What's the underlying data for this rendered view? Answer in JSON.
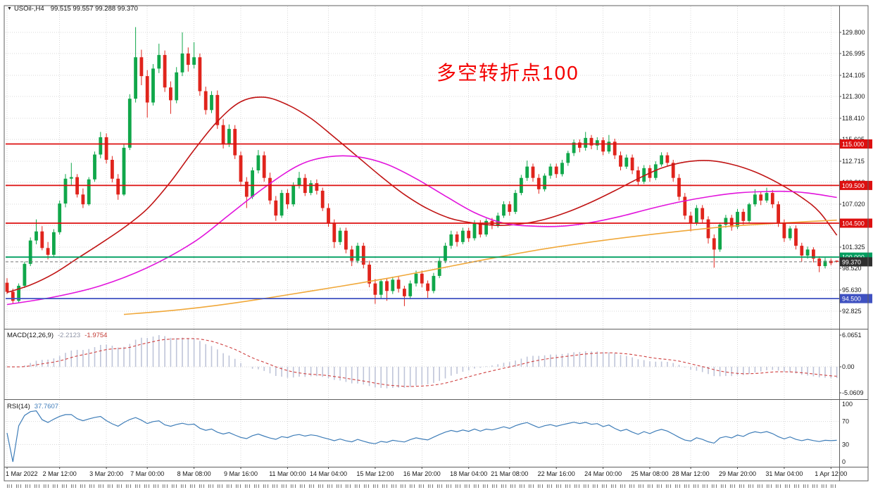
{
  "title": {
    "dropdown_glyph": "▼",
    "symbol_tf": "USOil-,H4",
    "ohlc": "99.515 99.557 99.288 99.370"
  },
  "annotation": {
    "text": "多空转折点100",
    "color": "#f40000"
  },
  "chart_data": {
    "type": "candlestick",
    "symbol": "USOil-",
    "timeframe": "H4",
    "title_ohlc": "99.515 99.557 99.288 99.370",
    "style": {
      "up": "#10a74a",
      "down": "#e0241c",
      "grid": "#d8d8d8",
      "macd_hist": "#bfc5d9",
      "macd_signal": "#cf4040",
      "rsi_line": "#3e7db8",
      "axis_text": "#161616"
    },
    "price_ticks": [
      "129.800",
      "126.995",
      "124.105",
      "121.300",
      "118.410",
      "115.605",
      "112.715",
      "109.910",
      "107.020",
      "104.215",
      "101.325",
      "98.520",
      "95.630",
      "92.825"
    ],
    "hlines": [
      {
        "price": 115.0,
        "label": "115.000",
        "color": "#dd0f0f"
      },
      {
        "price": 109.5,
        "label": " 109.500",
        "color": "#dd0f0f"
      },
      {
        "price": 104.5,
        "label": "104.500",
        "color": "#dd0f0f"
      },
      {
        "price": 100.0,
        "label": "100.000",
        "color": "#009f60"
      },
      {
        "price": 94.5,
        "label": "94.500",
        "color": "#3f51c1"
      }
    ],
    "current_price": {
      "value": 99.37,
      "label": "99.370",
      "color": "#2f2f2f"
    },
    "candles": [
      [
        96.6,
        97.2,
        95.1,
        95.4
      ],
      [
        95.4,
        95.8,
        93.9,
        94.2
      ],
      [
        94.2,
        96.5,
        93.9,
        96.2
      ],
      [
        96.2,
        99.4,
        95.9,
        99.1
      ],
      [
        99.1,
        102.6,
        98.8,
        102.2
      ],
      [
        102.2,
        105.0,
        101.7,
        103.4
      ],
      [
        103.4,
        104.1,
        100.9,
        101.2
      ],
      [
        101.2,
        102.0,
        99.7,
        100.3
      ],
      [
        100.3,
        103.7,
        100.0,
        103.3
      ],
      [
        103.3,
        107.5,
        103.0,
        107.1
      ],
      [
        107.1,
        111.0,
        106.6,
        110.4
      ],
      [
        110.4,
        112.5,
        109.5,
        110.6
      ],
      [
        110.6,
        111.0,
        107.9,
        108.3
      ],
      [
        108.3,
        109.1,
        106.5,
        107.0
      ],
      [
        107.0,
        110.6,
        106.8,
        110.3
      ],
      [
        110.3,
        114.0,
        110.0,
        113.6
      ],
      [
        113.6,
        116.6,
        113.1,
        115.9
      ],
      [
        115.9,
        116.4,
        112.4,
        112.9
      ],
      [
        112.9,
        113.4,
        109.9,
        110.4
      ],
      [
        110.4,
        111.0,
        107.6,
        108.3
      ],
      [
        108.3,
        115.0,
        108.1,
        114.5
      ],
      [
        114.5,
        121.6,
        114.2,
        121.0
      ],
      [
        121.0,
        130.5,
        120.5,
        126.5
      ],
      [
        126.5,
        127.5,
        122.8,
        124.0
      ],
      [
        124.0,
        124.8,
        118.5,
        120.5
      ],
      [
        120.5,
        125.6,
        120.1,
        125.0
      ],
      [
        125.0,
        128.3,
        124.4,
        126.8
      ],
      [
        126.8,
        127.4,
        121.9,
        122.5
      ],
      [
        122.5,
        123.3,
        119.0,
        120.8
      ],
      [
        120.8,
        125.2,
        120.4,
        124.5
      ],
      [
        124.5,
        129.8,
        124.0,
        127.0
      ],
      [
        127.0,
        127.8,
        124.6,
        125.5
      ],
      [
        125.5,
        128.5,
        125.0,
        126.5
      ],
      [
        126.5,
        127.0,
        121.4,
        122.0
      ],
      [
        122.0,
        122.6,
        118.9,
        119.5
      ],
      [
        119.5,
        122.0,
        119.1,
        121.5
      ],
      [
        121.5,
        122.1,
        117.0,
        117.5
      ],
      [
        117.5,
        118.3,
        114.4,
        115.0
      ],
      [
        115.0,
        117.6,
        114.6,
        117.0
      ],
      [
        117.0,
        117.5,
        113.0,
        113.5
      ],
      [
        113.5,
        114.0,
        109.4,
        110.0
      ],
      [
        110.0,
        110.6,
        106.5,
        108.0
      ],
      [
        108.0,
        111.9,
        107.7,
        111.5
      ],
      [
        111.5,
        114.2,
        111.1,
        113.5
      ],
      [
        113.5,
        114.0,
        110.0,
        110.5
      ],
      [
        110.5,
        111.2,
        107.0,
        107.5
      ],
      [
        107.5,
        108.1,
        104.8,
        105.5
      ],
      [
        105.5,
        108.9,
        105.2,
        108.5
      ],
      [
        108.5,
        109.0,
        106.4,
        107.0
      ],
      [
        107.0,
        109.9,
        106.7,
        109.5
      ],
      [
        109.5,
        111.3,
        109.1,
        110.5
      ],
      [
        110.5,
        111.0,
        108.1,
        108.5
      ],
      [
        108.5,
        110.2,
        108.2,
        109.8
      ],
      [
        109.8,
        110.3,
        108.3,
        108.8
      ],
      [
        108.8,
        109.2,
        106.1,
        106.5
      ],
      [
        106.5,
        107.1,
        104.0,
        104.5
      ],
      [
        104.5,
        105.0,
        101.2,
        102.0
      ],
      [
        102.0,
        103.9,
        101.6,
        103.5
      ],
      [
        103.5,
        103.9,
        100.5,
        101.0
      ],
      [
        101.0,
        101.5,
        98.8,
        99.5
      ],
      [
        99.5,
        101.9,
        99.2,
        101.5
      ],
      [
        101.5,
        101.9,
        98.5,
        99.0
      ],
      [
        99.0,
        99.5,
        96.0,
        96.5
      ],
      [
        96.5,
        97.1,
        93.8,
        95.0
      ],
      [
        95.0,
        97.1,
        94.5,
        96.8
      ],
      [
        96.8,
        97.2,
        94.2,
        95.5
      ],
      [
        95.5,
        97.4,
        95.1,
        97.0
      ],
      [
        97.0,
        97.4,
        95.3,
        95.8
      ],
      [
        95.8,
        96.2,
        93.5,
        94.8
      ],
      [
        94.8,
        96.9,
        94.4,
        96.5
      ],
      [
        96.5,
        98.2,
        96.1,
        97.8
      ],
      [
        97.8,
        98.2,
        96.0,
        96.5
      ],
      [
        96.5,
        96.9,
        94.6,
        95.5
      ],
      [
        95.5,
        97.9,
        95.2,
        97.5
      ],
      [
        97.5,
        99.9,
        97.2,
        99.5
      ],
      [
        99.5,
        101.9,
        99.2,
        101.5
      ],
      [
        101.5,
        103.5,
        101.1,
        103.0
      ],
      [
        103.0,
        103.4,
        101.4,
        102.0
      ],
      [
        102.0,
        103.9,
        101.7,
        103.5
      ],
      [
        103.5,
        103.9,
        102.0,
        102.5
      ],
      [
        102.5,
        104.9,
        102.2,
        104.5
      ],
      [
        104.5,
        104.9,
        102.6,
        103.0
      ],
      [
        103.0,
        105.1,
        102.7,
        104.8
      ],
      [
        104.8,
        105.2,
        103.7,
        104.2
      ],
      [
        104.2,
        105.9,
        103.9,
        105.5
      ],
      [
        105.5,
        107.4,
        105.2,
        107.0
      ],
      [
        107.0,
        107.4,
        105.5,
        106.0
      ],
      [
        106.0,
        108.9,
        105.7,
        108.5
      ],
      [
        108.5,
        110.9,
        108.2,
        110.5
      ],
      [
        110.5,
        112.8,
        110.1,
        112.0
      ],
      [
        112.0,
        112.4,
        110.0,
        110.5
      ],
      [
        110.5,
        111.0,
        108.4,
        109.0
      ],
      [
        109.0,
        111.1,
        108.7,
        110.8
      ],
      [
        110.8,
        112.4,
        110.4,
        112.0
      ],
      [
        112.0,
        112.4,
        110.5,
        111.0
      ],
      [
        111.0,
        112.9,
        110.7,
        112.5
      ],
      [
        112.5,
        114.1,
        112.1,
        113.8
      ],
      [
        113.8,
        115.6,
        113.4,
        115.2
      ],
      [
        115.2,
        115.6,
        113.9,
        114.5
      ],
      [
        114.5,
        116.6,
        114.1,
        115.8
      ],
      [
        115.8,
        116.2,
        114.3,
        114.8
      ],
      [
        114.8,
        115.9,
        114.2,
        115.5
      ],
      [
        115.5,
        115.9,
        113.5,
        114.0
      ],
      [
        114.0,
        116.2,
        113.7,
        115.3
      ],
      [
        115.3,
        115.7,
        113.0,
        113.5
      ],
      [
        113.5,
        114.0,
        111.5,
        112.0
      ],
      [
        112.0,
        113.6,
        111.7,
        113.2
      ],
      [
        113.2,
        113.6,
        111.0,
        111.5
      ],
      [
        111.5,
        112.0,
        109.5,
        110.0
      ],
      [
        110.0,
        112.2,
        109.7,
        111.8
      ],
      [
        111.8,
        112.2,
        110.0,
        110.5
      ],
      [
        110.5,
        112.7,
        110.2,
        112.3
      ],
      [
        112.3,
        113.9,
        112.0,
        113.5
      ],
      [
        113.5,
        113.9,
        112.0,
        112.5
      ],
      [
        112.5,
        112.9,
        110.0,
        110.5
      ],
      [
        110.5,
        111.0,
        107.5,
        108.0
      ],
      [
        108.0,
        108.5,
        105.0,
        105.5
      ],
      [
        105.5,
        106.0,
        103.4,
        104.5
      ],
      [
        104.5,
        106.9,
        104.2,
        106.5
      ],
      [
        106.5,
        106.9,
        104.5,
        105.0
      ],
      [
        105.0,
        105.4,
        101.8,
        102.5
      ],
      [
        102.5,
        103.0,
        98.6,
        101.0
      ],
      [
        101.0,
        104.6,
        100.7,
        104.3
      ],
      [
        104.3,
        105.6,
        103.9,
        105.2
      ],
      [
        105.2,
        105.6,
        103.5,
        104.0
      ],
      [
        104.0,
        106.4,
        103.7,
        106.0
      ],
      [
        106.0,
        106.4,
        104.3,
        104.8
      ],
      [
        104.8,
        107.2,
        104.5,
        107.0
      ],
      [
        107.0,
        109.0,
        106.7,
        108.3
      ],
      [
        108.3,
        108.7,
        106.9,
        107.5
      ],
      [
        107.5,
        109.2,
        107.2,
        108.5
      ],
      [
        108.5,
        108.9,
        106.5,
        107.0
      ],
      [
        107.0,
        107.4,
        104.0,
        104.5
      ],
      [
        104.5,
        105.0,
        102.0,
        102.5
      ],
      [
        102.5,
        104.1,
        102.2,
        103.8
      ],
      [
        103.8,
        104.2,
        101.0,
        101.5
      ],
      [
        101.5,
        101.9,
        99.4,
        100.2
      ],
      [
        100.2,
        101.4,
        99.8,
        101.0
      ],
      [
        101.0,
        101.3,
        99.3,
        99.8
      ],
      [
        99.8,
        100.1,
        98.0,
        98.8
      ],
      [
        98.8,
        99.9,
        98.5,
        99.5
      ],
      [
        99.5,
        99.8,
        98.9,
        99.2
      ],
      [
        99.52,
        99.56,
        99.29,
        99.37
      ]
    ],
    "ma_lines": [
      {
        "name": "ma-red",
        "color": "#c01414",
        "points": [
          [
            0,
            95.3
          ],
          [
            4,
            96.3
          ],
          [
            8,
            97.8
          ],
          [
            12,
            99.8
          ],
          [
            16,
            101.8
          ],
          [
            20,
            103.9
          ],
          [
            24,
            106.4
          ],
          [
            28,
            110.0
          ],
          [
            32,
            114.2
          ],
          [
            36,
            118.0
          ],
          [
            40,
            120.6
          ],
          [
            44,
            121.2
          ],
          [
            48,
            120.2
          ],
          [
            52,
            118.4
          ],
          [
            56,
            115.9
          ],
          [
            60,
            113.3
          ],
          [
            64,
            110.7
          ],
          [
            68,
            108.3
          ],
          [
            72,
            106.4
          ],
          [
            76,
            105.1
          ],
          [
            80,
            104.5
          ],
          [
            84,
            104.2
          ],
          [
            88,
            104.4
          ],
          [
            92,
            105.0
          ],
          [
            96,
            106.0
          ],
          [
            100,
            107.3
          ],
          [
            104,
            108.8
          ],
          [
            108,
            110.4
          ],
          [
            112,
            111.8
          ],
          [
            116,
            112.6
          ],
          [
            120,
            112.8
          ],
          [
            124,
            112.3
          ],
          [
            128,
            111.3
          ],
          [
            132,
            109.8
          ],
          [
            136,
            107.9
          ],
          [
            139,
            106.0
          ],
          [
            142,
            102.9
          ]
        ]
      },
      {
        "name": "ma-magenta",
        "color": "#e214dc",
        "points": [
          [
            0,
            93.7
          ],
          [
            8,
            94.7
          ],
          [
            16,
            96.2
          ],
          [
            24,
            98.6
          ],
          [
            32,
            102.0
          ],
          [
            38,
            105.6
          ],
          [
            44,
            109.2
          ],
          [
            50,
            112.2
          ],
          [
            55,
            113.3
          ],
          [
            60,
            113.3
          ],
          [
            65,
            112.3
          ],
          [
            70,
            110.4
          ],
          [
            75,
            108.1
          ],
          [
            80,
            105.9
          ],
          [
            85,
            104.5
          ],
          [
            90,
            104.1
          ],
          [
            95,
            104.1
          ],
          [
            100,
            104.6
          ],
          [
            105,
            105.4
          ],
          [
            110,
            106.4
          ],
          [
            115,
            107.3
          ],
          [
            120,
            108.0
          ],
          [
            125,
            108.5
          ],
          [
            130,
            108.7
          ],
          [
            134,
            108.7
          ],
          [
            138,
            108.4
          ],
          [
            142,
            107.9
          ]
        ]
      },
      {
        "name": "ma-orange",
        "color": "#f0a83a",
        "points": [
          [
            20,
            92.4
          ],
          [
            28,
            92.9
          ],
          [
            36,
            93.6
          ],
          [
            44,
            94.5
          ],
          [
            52,
            95.5
          ],
          [
            60,
            96.5
          ],
          [
            68,
            97.6
          ],
          [
            76,
            98.8
          ],
          [
            84,
            100.0
          ],
          [
            92,
            101.1
          ],
          [
            100,
            102.0
          ],
          [
            108,
            102.8
          ],
          [
            116,
            103.5
          ],
          [
            124,
            104.1
          ],
          [
            132,
            104.5
          ],
          [
            138,
            104.75
          ],
          [
            142,
            104.9
          ]
        ]
      }
    ],
    "macd": {
      "name": "MACD(12,26,9)",
      "value_main": "-2.2123",
      "value_signal": "-1.9754",
      "fast": 12,
      "slow": 26,
      "signal": 9,
      "axis_ticks": [
        "6.0651",
        "0.00",
        "-5.0609"
      ]
    },
    "rsi": {
      "name": "RSI(14)",
      "period": 14,
      "value": "37.7607",
      "levels": [
        70,
        30
      ],
      "axis_ticks": [
        "100",
        "70",
        "30",
        "0"
      ]
    },
    "time_labels": [
      [
        "1 Mar 2022",
        0
      ],
      [
        "2 Mar 12:00",
        9
      ],
      [
        "3 Mar 20:00",
        17
      ],
      [
        "7 Mar 00:00",
        24
      ],
      [
        "8 Mar 08:00",
        32
      ],
      [
        "9 Mar 16:00",
        40
      ],
      [
        "11 Mar 00:00",
        48
      ],
      [
        "14 Mar 04:00",
        55
      ],
      [
        "15 Mar 12:00",
        63
      ],
      [
        "16 Mar 20:00",
        71
      ],
      [
        "18 Mar 04:00",
        79
      ],
      [
        "21 Mar 08:00",
        86
      ],
      [
        "22 Mar 16:00",
        94
      ],
      [
        "24 Mar 00:00",
        102
      ],
      [
        "25 Mar 08:00",
        110
      ],
      [
        "28 Mar 12:00",
        117
      ],
      [
        "29 Mar 20:00",
        125
      ],
      [
        "31 Mar 04:00",
        133
      ],
      [
        "1 Apr 12:00",
        141
      ]
    ]
  }
}
